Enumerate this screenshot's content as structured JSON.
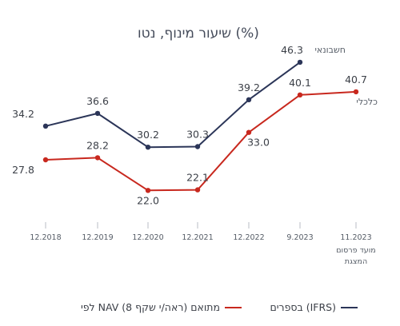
{
  "chart_data": {
    "type": "line",
    "title": "שיעור מינוף, נטו (%)",
    "categories": [
      "12.2018",
      "12.2019",
      "12.2020",
      "12.2021",
      "12.2022",
      "9.2023",
      "11.2023"
    ],
    "category_sub_labels": {
      "11.2023": [
        "מועד פרסום",
        "המצגת"
      ]
    },
    "ylim": [
      15,
      55
    ],
    "grid": false,
    "legend_position": "bottom",
    "series": [
      {
        "name": "בספרים (IFRS)",
        "series_label": "חשבונאי",
        "color": "#2b3558",
        "values": [
          34.2,
          36.6,
          30.2,
          30.3,
          39.2,
          46.3,
          null
        ],
        "labels": [
          "34.2",
          "36.6",
          "30.2",
          "30.3",
          "39.2",
          "46.3",
          ""
        ]
      },
      {
        "name": "לפי NAV מתואם (ראה/י שקף 8)",
        "series_label": "כלכלי",
        "color": "#c8281e",
        "values": [
          27.8,
          28.2,
          22.0,
          22.1,
          33.0,
          40.1,
          40.7
        ],
        "labels": [
          "27.8",
          "28.2",
          "22.0",
          "22.1",
          "33.0",
          "40.1",
          "40.7"
        ]
      }
    ]
  }
}
